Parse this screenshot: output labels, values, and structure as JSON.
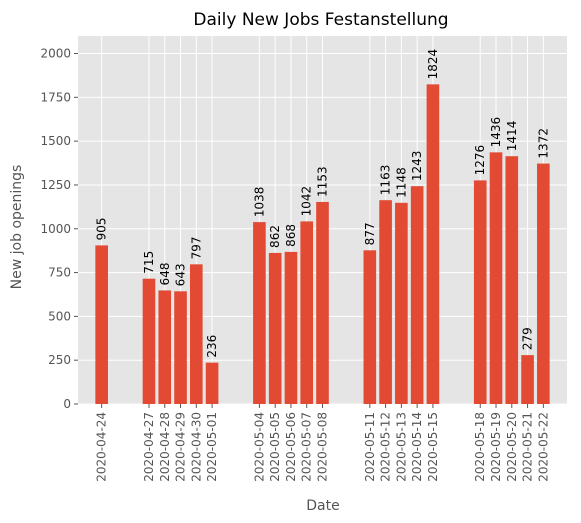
{
  "chart_data": {
    "type": "bar",
    "title": "Daily New Jobs Festanstellung",
    "xlabel": "Date",
    "ylabel": "New job openings",
    "ylim": [
      0,
      2100
    ],
    "xlim": [
      "2020-04-22T12:00",
      "2020-05-23T12:00"
    ],
    "yticks": [
      0,
      250,
      500,
      750,
      1000,
      1250,
      1500,
      1750,
      2000
    ],
    "grid": true,
    "colors": {
      "bar": "#e24a33",
      "background": "#e5e5e5",
      "grid": "#ffffff"
    },
    "categories": [
      "2020-04-24",
      "2020-04-27",
      "2020-04-28",
      "2020-04-29",
      "2020-04-30",
      "2020-05-01",
      "2020-05-04",
      "2020-05-05",
      "2020-05-06",
      "2020-05-07",
      "2020-05-08",
      "2020-05-11",
      "2020-05-12",
      "2020-05-13",
      "2020-05-14",
      "2020-05-15",
      "2020-05-18",
      "2020-05-19",
      "2020-05-20",
      "2020-05-21",
      "2020-05-22"
    ],
    "values": [
      905,
      715,
      648,
      643,
      797,
      236,
      1038,
      862,
      868,
      1042,
      1153,
      877,
      1163,
      1148,
      1243,
      1824,
      1276,
      1436,
      1414,
      279,
      1372
    ],
    "value_labels": [
      "905",
      "715",
      "648",
      "643",
      "797",
      "236",
      "1038",
      "862",
      "868",
      "1042",
      "1153",
      "877",
      "1163",
      "1148",
      "1243",
      "1824",
      "1276",
      "1436",
      "1414",
      "279",
      "1372"
    ]
  }
}
